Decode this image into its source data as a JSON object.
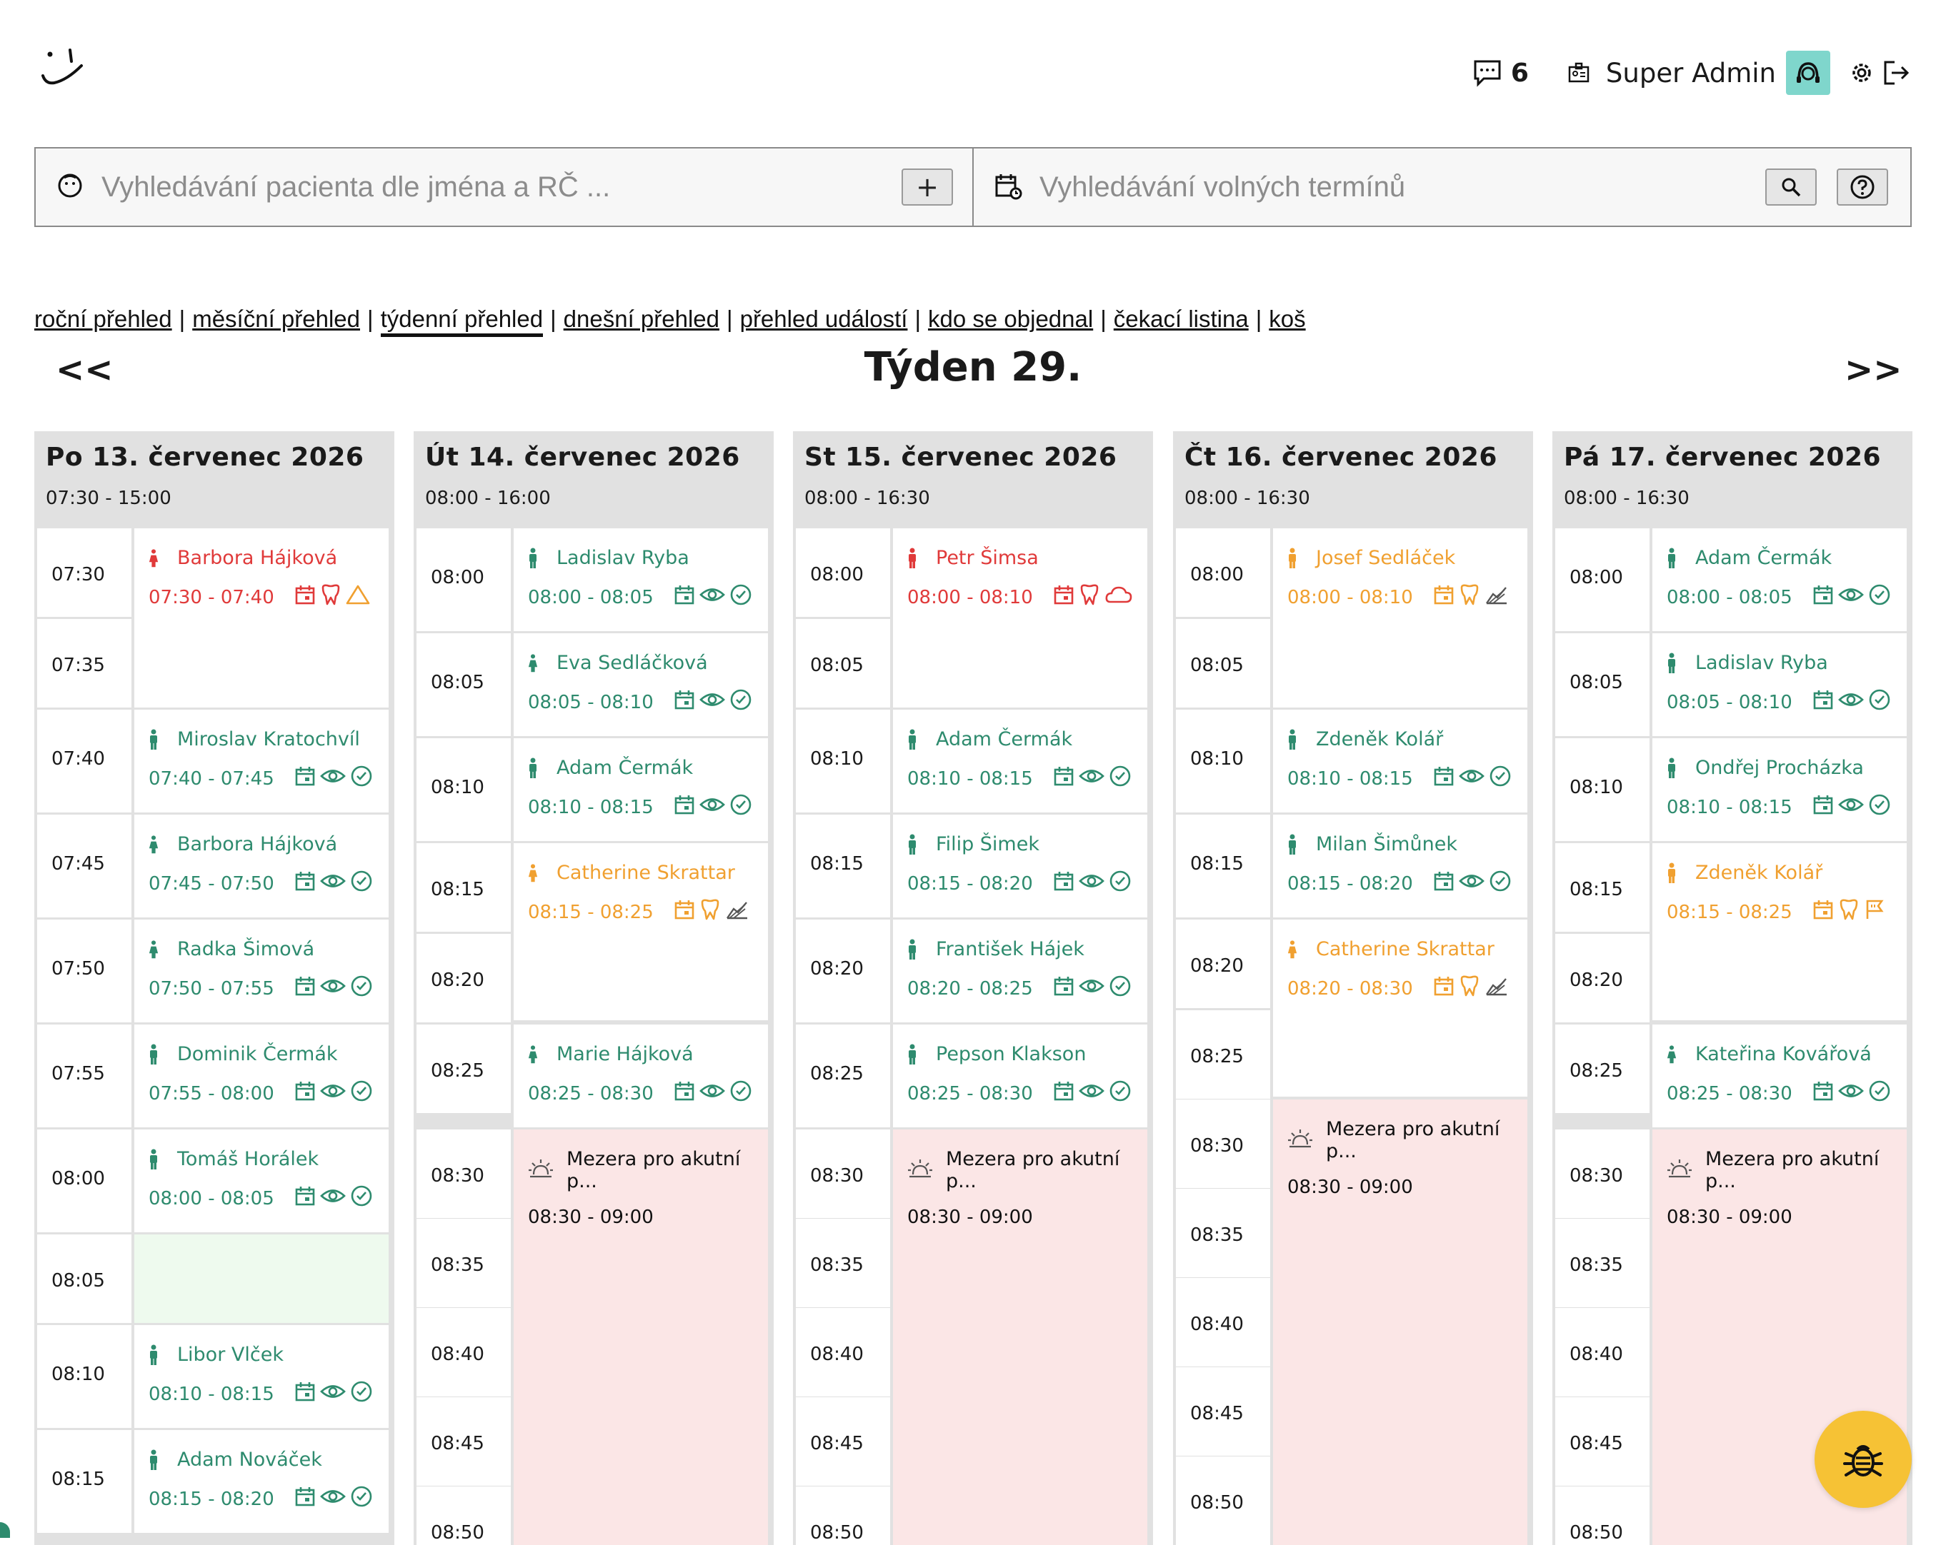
{
  "topbar": {
    "messages_count": "6",
    "user_name": "Super Admin",
    "icons": [
      "smile-logo-icon",
      "chat-icon",
      "id-badge-icon",
      "doctor-avatar-icon",
      "gear-icon",
      "logout-icon"
    ]
  },
  "search": {
    "patient_placeholder": "Vyhledávání pacienta dle jména a RČ ...",
    "add_label": "+",
    "slots_placeholder": "Vyhledávání volných termínů"
  },
  "nav": {
    "items": [
      "roční přehled",
      "měsíční přehled",
      "týdenní přehled",
      "dnešní přehled",
      "přehled událostí",
      "kdo se objednal",
      "čekací listina",
      "koš"
    ],
    "active": "týdenní přehled"
  },
  "week": {
    "title": "Týden 29.",
    "prev": "<<",
    "next": ">>"
  },
  "colors": {
    "green": "#2e8b6e",
    "red": "#e03a3a",
    "orange": "#f0a030",
    "gap": "#fbe6e6",
    "header": "#e1e1e1",
    "avatar": "#7fd6cc",
    "bug": "#f6c235"
  },
  "days": [
    {
      "title": "Po 13. červenec 2026",
      "hours": "07:30 - 15:00",
      "times": [
        "07:30",
        "07:35",
        "07:40",
        "07:45",
        "07:50",
        "07:55",
        "08:00",
        "08:05",
        "08:10",
        "08:15"
      ],
      "appts": [
        {
          "name": "Barbora Hájková",
          "time": "07:30 - 07:40",
          "color": "red",
          "icons": [
            "calendar",
            "tooth",
            "warning"
          ]
        },
        {
          "name": "Miroslav Kratochvíl",
          "time": "07:40 - 07:45",
          "color": "green",
          "icons": [
            "calendar",
            "eye",
            "check"
          ]
        },
        {
          "name": "Barbora Hájková",
          "time": "07:45 - 07:50",
          "color": "green",
          "icons": [
            "calendar",
            "eye",
            "check"
          ]
        },
        {
          "name": "Radka Šimová",
          "time": "07:50 - 07:55",
          "color": "green",
          "icons": [
            "calendar",
            "eye",
            "check"
          ]
        },
        {
          "name": "Dominik Čermák",
          "time": "07:55 - 08:00",
          "color": "green",
          "icons": [
            "calendar",
            "eye",
            "check"
          ]
        },
        {
          "name": "Tomáš Horálek",
          "time": "08:00 - 08:05",
          "color": "green",
          "icons": [
            "calendar",
            "eye",
            "check"
          ]
        },
        {
          "name": "Libor Vlček",
          "time": "08:10 - 08:15",
          "color": "green",
          "icons": [
            "calendar",
            "eye",
            "check"
          ]
        },
        {
          "name": "Adam Nováček",
          "time": "08:15 - 08:20",
          "color": "green",
          "icons": [
            "calendar",
            "eye",
            "check"
          ]
        }
      ]
    },
    {
      "title": "Út 14. červenec 2026",
      "hours": "08:00 - 16:00",
      "times": [
        "08:00",
        "08:05",
        "08:10",
        "08:15",
        "08:20",
        "08:25",
        "08:30",
        "08:35",
        "08:40",
        "08:45",
        "08:50"
      ],
      "appts": [
        {
          "name": "Ladislav Ryba",
          "time": "08:00 - 08:05",
          "color": "green",
          "icons": [
            "calendar",
            "eye",
            "check"
          ]
        },
        {
          "name": "Eva Sedláčková",
          "time": "08:05 - 08:10",
          "color": "green",
          "icons": [
            "calendar",
            "eye",
            "check"
          ]
        },
        {
          "name": "Adam Čermák",
          "time": "08:10 - 08:15",
          "color": "green",
          "icons": [
            "calendar",
            "eye",
            "check"
          ]
        },
        {
          "name": "Catherine Skrattar",
          "time": "08:15 - 08:25",
          "color": "orange",
          "icons": [
            "calendar",
            "tooth",
            "chart"
          ]
        },
        {
          "name": "Marie Hájková",
          "time": "08:25 - 08:30",
          "color": "green",
          "icons": [
            "calendar",
            "eye",
            "check"
          ]
        }
      ],
      "gap": {
        "label": "Mezera pro akutní p...",
        "time": "08:30 - 09:00"
      }
    },
    {
      "title": "St 15. červenec 2026",
      "hours": "08:00 - 16:30",
      "times": [
        "08:00",
        "08:05",
        "08:10",
        "08:15",
        "08:20",
        "08:25",
        "08:30",
        "08:35",
        "08:40",
        "08:45",
        "08:50"
      ],
      "appts": [
        {
          "name": "Petr Šimsa",
          "time": "08:00 - 08:10",
          "color": "red",
          "icons": [
            "calendar",
            "tooth",
            "cloud"
          ]
        },
        {
          "name": "Adam Čermák",
          "time": "08:10 - 08:15",
          "color": "green",
          "icons": [
            "calendar",
            "eye",
            "check"
          ]
        },
        {
          "name": "Filip Šimek",
          "time": "08:15 - 08:20",
          "color": "green",
          "icons": [
            "calendar",
            "eye",
            "check"
          ]
        },
        {
          "name": "František Hájek",
          "time": "08:20 - 08:25",
          "color": "green",
          "icons": [
            "calendar",
            "eye",
            "check"
          ]
        },
        {
          "name": "Pepson Klakson",
          "time": "08:25 - 08:30",
          "color": "green",
          "icons": [
            "calendar",
            "eye",
            "check"
          ]
        }
      ],
      "gap": {
        "label": "Mezera pro akutní p...",
        "time": "08:30 - 09:00"
      }
    },
    {
      "title": "Čt 16. červenec 2026",
      "hours": "08:00 - 16:30",
      "times": [
        "08:00",
        "08:05",
        "08:10",
        "08:15",
        "08:20",
        "08:25",
        "08:30",
        "08:35",
        "08:40",
        "08:45",
        "08:50"
      ],
      "appts": [
        {
          "name": "Josef Sedláček",
          "time": "08:00 - 08:10",
          "color": "orange",
          "icons": [
            "calendar",
            "tooth",
            "chart"
          ]
        },
        {
          "name": "Zdeněk Kolář",
          "time": "08:10 - 08:15",
          "color": "green",
          "icons": [
            "calendar",
            "eye",
            "check"
          ]
        },
        {
          "name": "Milan Šimůnek",
          "time": "08:15 - 08:20",
          "color": "green",
          "icons": [
            "calendar",
            "eye",
            "check"
          ]
        },
        {
          "name": "Catherine Skrattar",
          "time": "08:20 - 08:30",
          "color": "orange",
          "icons": [
            "calendar",
            "tooth",
            "chart"
          ]
        }
      ],
      "gap": {
        "label": "Mezera pro akutní p...",
        "time": "08:30 - 09:00"
      }
    },
    {
      "title": "Pá 17. červenec 2026",
      "hours": "08:00 - 16:30",
      "times": [
        "08:00",
        "08:05",
        "08:10",
        "08:15",
        "08:20",
        "08:25",
        "08:30",
        "08:35",
        "08:40",
        "08:45",
        "08:50"
      ],
      "appts": [
        {
          "name": "Adam Čermák",
          "time": "08:00 - 08:05",
          "color": "green",
          "icons": [
            "calendar",
            "eye",
            "check"
          ]
        },
        {
          "name": "Ladislav Ryba",
          "time": "08:05 - 08:10",
          "color": "green",
          "icons": [
            "calendar",
            "eye",
            "check"
          ]
        },
        {
          "name": "Ondřej Procházka",
          "time": "08:10 - 08:15",
          "color": "green",
          "icons": [
            "calendar",
            "eye",
            "check"
          ]
        },
        {
          "name": "Zdeněk Kolář",
          "time": "08:15 - 08:25",
          "color": "orange",
          "icons": [
            "calendar",
            "tooth",
            "flag"
          ]
        },
        {
          "name": "Kateřina Kovářová",
          "time": "08:25 - 08:30",
          "color": "green",
          "icons": [
            "calendar",
            "eye",
            "check"
          ]
        }
      ],
      "gap": {
        "label": "Mezera pro akutní p...",
        "time": "08:30 - 09:00"
      }
    }
  ]
}
